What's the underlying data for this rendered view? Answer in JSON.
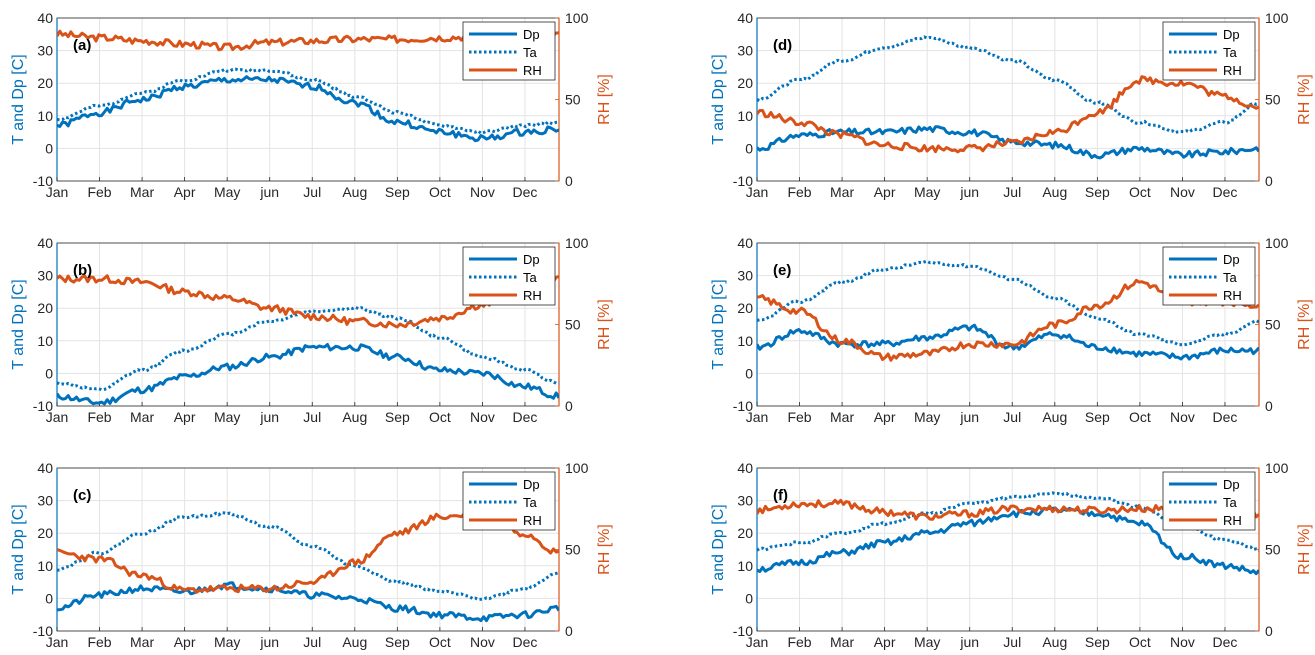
{
  "colors": {
    "dp": "#0072BD",
    "ta": "#0072BD",
    "rh": "#D95319",
    "grid": "#e3e3e3",
    "axis": "#262626"
  },
  "chart_data": [
    {
      "type": "line",
      "panel_label": "(a)",
      "xlabel": "",
      "x_tick_labels": [
        "Jan",
        "Feb",
        "Mar",
        "Apr",
        "May",
        "jun",
        "Jul",
        "Aug",
        "Sep",
        "Oct",
        "Nov",
        "Dec"
      ],
      "ylabel_left": "T and Dp [C]",
      "ylabel_right": "RH [%]",
      "ylim_left": [
        -10,
        40
      ],
      "ylim_right": [
        0,
        100
      ],
      "yticks_left": [
        "-10",
        "0",
        "10",
        "20",
        "30",
        "40"
      ],
      "yticks_right": [
        "0",
        "50",
        "100"
      ],
      "grid": true,
      "legend_position": "top-right",
      "legend": [
        "Dp",
        "Ta",
        "RH"
      ],
      "series": [
        {
          "name": "Dp",
          "axis": "left",
          "style": "solid",
          "x": [
            0,
            1,
            2,
            3,
            4,
            5,
            6,
            7,
            8,
            9,
            10,
            11,
            11.8
          ],
          "values": [
            7,
            11,
            15,
            19,
            21,
            21,
            19,
            14,
            8,
            5,
            3,
            5,
            6
          ]
        },
        {
          "name": "Ta",
          "axis": "left",
          "style": "dotted",
          "x": [
            0,
            1,
            2,
            3,
            4,
            5,
            6,
            7,
            8,
            9,
            10,
            11,
            11.8
          ],
          "values": [
            9,
            13,
            17,
            21,
            24,
            24,
            21,
            16,
            11,
            7,
            5,
            7,
            8
          ]
        },
        {
          "name": "RH",
          "axis": "right",
          "style": "solid",
          "x": [
            0,
            1,
            2,
            3,
            4,
            5,
            6,
            7,
            8,
            9,
            10,
            11,
            11.8
          ],
          "values": [
            90,
            88,
            86,
            84,
            82,
            85,
            86,
            87,
            87,
            88,
            89,
            90,
            89
          ]
        }
      ]
    },
    {
      "type": "line",
      "panel_label": "(b)",
      "xlabel": "",
      "x_tick_labels": [
        "Jan",
        "Feb",
        "Mar",
        "Apr",
        "May",
        "jun",
        "Jul",
        "Aug",
        "Sep",
        "Oct",
        "Nov",
        "Dec"
      ],
      "ylabel_left": "T and Dp [C]",
      "ylabel_right": "RH [%]",
      "ylim_left": [
        -10,
        40
      ],
      "ylim_right": [
        0,
        100
      ],
      "yticks_left": [
        "-10",
        "0",
        "10",
        "20",
        "30",
        "40"
      ],
      "yticks_right": [
        "0",
        "50",
        "100"
      ],
      "grid": true,
      "legend_position": "top-right",
      "legend": [
        "Dp",
        "Ta",
        "RH"
      ],
      "series": [
        {
          "name": "Dp",
          "axis": "left",
          "style": "solid",
          "x": [
            0,
            1,
            2,
            3,
            4,
            5,
            6,
            7,
            8,
            9,
            10,
            11,
            11.8
          ],
          "values": [
            -7,
            -9,
            -5,
            -1,
            2,
            5,
            8,
            8,
            5,
            1,
            0,
            -4,
            -7
          ]
        },
        {
          "name": "Ta",
          "axis": "left",
          "style": "dotted",
          "x": [
            0,
            1,
            2,
            3,
            4,
            5,
            6,
            7,
            8,
            9,
            10,
            11,
            11.8
          ],
          "values": [
            -3,
            -5,
            1,
            7,
            12,
            16,
            19,
            20,
            17,
            11,
            5,
            1,
            -3
          ]
        },
        {
          "name": "RH",
          "axis": "right",
          "style": "solid",
          "x": [
            0,
            1,
            2,
            3,
            4,
            5,
            6,
            7,
            8,
            9,
            10,
            11,
            11.8
          ],
          "values": [
            78,
            78,
            76,
            70,
            66,
            60,
            55,
            52,
            50,
            54,
            62,
            72,
            78
          ]
        }
      ]
    },
    {
      "type": "line",
      "panel_label": "(c)",
      "xlabel": "",
      "x_tick_labels": [
        "Jan",
        "Feb",
        "Mar",
        "Apr",
        "May",
        "jun",
        "Jul",
        "Aug",
        "Sep",
        "Oct",
        "Nov",
        "Dec"
      ],
      "ylabel_left": "T and Dp [C]",
      "ylabel_right": "RH [%]",
      "ylim_left": [
        -10,
        40
      ],
      "ylim_right": [
        0,
        100
      ],
      "yticks_left": [
        "-10",
        "0",
        "10",
        "20",
        "30",
        "40"
      ],
      "yticks_right": [
        "0",
        "50",
        "100"
      ],
      "grid": true,
      "legend_position": "top-right",
      "legend": [
        "Dp",
        "Ta",
        "RH"
      ],
      "series": [
        {
          "name": "Dp",
          "axis": "left",
          "style": "solid",
          "x": [
            0,
            1,
            2,
            3,
            4,
            5,
            6,
            7,
            8,
            9,
            10,
            11,
            11.8
          ],
          "values": [
            -3,
            1,
            3,
            2,
            4,
            3,
            1,
            0,
            -3,
            -5,
            -6,
            -5,
            -3
          ]
        },
        {
          "name": "Ta",
          "axis": "left",
          "style": "dotted",
          "x": [
            0,
            1,
            2,
            3,
            4,
            5,
            6,
            7,
            8,
            9,
            10,
            11,
            11.8
          ],
          "values": [
            9,
            14,
            20,
            25,
            26,
            22,
            16,
            10,
            5,
            2,
            0,
            3,
            8
          ]
        },
        {
          "name": "RH",
          "axis": "right",
          "style": "solid",
          "x": [
            0,
            1,
            2,
            3,
            4,
            5,
            6,
            7,
            8,
            9,
            10,
            11,
            11.8
          ],
          "values": [
            48,
            44,
            34,
            25,
            26,
            26,
            30,
            42,
            60,
            70,
            72,
            60,
            48
          ]
        }
      ]
    },
    {
      "type": "line",
      "panel_label": "(d)",
      "xlabel": "",
      "x_tick_labels": [
        "Jan",
        "Feb",
        "Mar",
        "Apr",
        "May",
        "jun",
        "Jul",
        "Aug",
        "Sep",
        "Oct",
        "Nov",
        "Dec"
      ],
      "ylabel_left": "T and Dp [C]",
      "ylabel_right": "RH [%]",
      "ylim_left": [
        -10,
        40
      ],
      "ylim_right": [
        0,
        100
      ],
      "yticks_left": [
        "-10",
        "0",
        "10",
        "20",
        "30",
        "40"
      ],
      "yticks_right": [
        "0",
        "50",
        "100"
      ],
      "grid": true,
      "legend_position": "top-right",
      "legend": [
        "Dp",
        "Ta",
        "RH"
      ],
      "series": [
        {
          "name": "Dp",
          "axis": "left",
          "style": "solid",
          "x": [
            0,
            1,
            2,
            3,
            4,
            5,
            6,
            7,
            8,
            9,
            10,
            11,
            11.8
          ],
          "values": [
            0,
            4,
            5,
            5,
            6,
            5,
            2,
            1,
            -2,
            0,
            -2,
            -1,
            0
          ]
        },
        {
          "name": "Ta",
          "axis": "left",
          "style": "dotted",
          "x": [
            0,
            1,
            2,
            3,
            4,
            5,
            6,
            7,
            8,
            9,
            10,
            11,
            11.8
          ],
          "values": [
            15,
            21,
            27,
            31,
            34,
            31,
            27,
            21,
            14,
            8,
            5,
            8,
            14
          ]
        },
        {
          "name": "RH",
          "axis": "right",
          "style": "solid",
          "x": [
            0,
            1,
            2,
            3,
            4,
            5,
            6,
            7,
            8,
            9,
            10,
            11,
            11.8
          ],
          "values": [
            42,
            36,
            28,
            22,
            20,
            20,
            23,
            30,
            42,
            62,
            60,
            52,
            45
          ]
        }
      ]
    },
    {
      "type": "line",
      "panel_label": "(e)",
      "xlabel": "",
      "x_tick_labels": [
        "Jan",
        "Feb",
        "Mar",
        "Apr",
        "May",
        "jun",
        "Jul",
        "Aug",
        "Sep",
        "Oct",
        "Nov",
        "Dec"
      ],
      "ylabel_left": "T and Dp [C]",
      "ylabel_right": "RH [%]",
      "ylim_left": [
        -10,
        40
      ],
      "ylim_right": [
        0,
        100
      ],
      "yticks_left": [
        "-10",
        "0",
        "10",
        "20",
        "30",
        "40"
      ],
      "yticks_right": [
        "0",
        "50",
        "100"
      ],
      "grid": true,
      "legend_position": "top-right",
      "legend": [
        "Dp",
        "Ta",
        "RH"
      ],
      "series": [
        {
          "name": "Dp",
          "axis": "left",
          "style": "solid",
          "x": [
            0,
            1,
            2,
            3,
            4,
            5,
            6,
            7,
            8,
            9,
            10,
            11,
            11.8
          ],
          "values": [
            8,
            13,
            9,
            9,
            11,
            14,
            8,
            12,
            8,
            6,
            5,
            7,
            7
          ]
        },
        {
          "name": "Ta",
          "axis": "left",
          "style": "dotted",
          "x": [
            0,
            1,
            2,
            3,
            4,
            5,
            6,
            7,
            8,
            9,
            10,
            11,
            11.8
          ],
          "values": [
            16,
            22,
            28,
            32,
            34,
            33,
            29,
            23,
            17,
            12,
            9,
            12,
            16
          ]
        },
        {
          "name": "RH",
          "axis": "right",
          "style": "solid",
          "x": [
            0,
            1,
            2,
            3,
            4,
            5,
            6,
            7,
            8,
            9,
            10,
            11,
            11.8
          ],
          "values": [
            66,
            58,
            40,
            30,
            32,
            38,
            38,
            50,
            62,
            76,
            64,
            64,
            62
          ]
        }
      ]
    },
    {
      "type": "line",
      "panel_label": "(f)",
      "xlabel": "",
      "x_tick_labels": [
        "Jan",
        "Feb",
        "Mar",
        "Apr",
        "May",
        "jun",
        "Jul",
        "Aug",
        "Sep",
        "Oct",
        "Nov",
        "Dec"
      ],
      "ylabel_left": "T and Dp [C]",
      "ylabel_right": "RH [%]",
      "ylim_left": [
        -10,
        40
      ],
      "ylim_right": [
        0,
        100
      ],
      "yticks_left": [
        "-10",
        "0",
        "10",
        "20",
        "30",
        "40"
      ],
      "yticks_right": [
        "0",
        "50",
        "100"
      ],
      "grid": true,
      "legend_position": "top-right",
      "legend": [
        "Dp",
        "Ta",
        "RH"
      ],
      "series": [
        {
          "name": "Dp",
          "axis": "left",
          "style": "solid",
          "x": [
            0,
            1,
            2,
            3,
            4,
            5,
            6,
            7,
            8,
            9,
            10,
            11,
            11.8
          ],
          "values": [
            9,
            11,
            14,
            17,
            20,
            23,
            26,
            27,
            26,
            23,
            13,
            10,
            8
          ]
        },
        {
          "name": "Ta",
          "axis": "left",
          "style": "dotted",
          "x": [
            0,
            1,
            2,
            3,
            4,
            5,
            6,
            7,
            8,
            9,
            10,
            11,
            11.8
          ],
          "values": [
            15,
            17,
            20,
            23,
            26,
            29,
            31,
            32,
            31,
            28,
            22,
            18,
            15
          ]
        },
        {
          "name": "RH",
          "axis": "right",
          "style": "solid",
          "x": [
            0,
            1,
            2,
            3,
            4,
            5,
            6,
            7,
            8,
            9,
            10,
            11,
            11.8
          ],
          "values": [
            74,
            78,
            78,
            73,
            70,
            72,
            75,
            75,
            74,
            75,
            75,
            74,
            72
          ]
        }
      ]
    }
  ]
}
